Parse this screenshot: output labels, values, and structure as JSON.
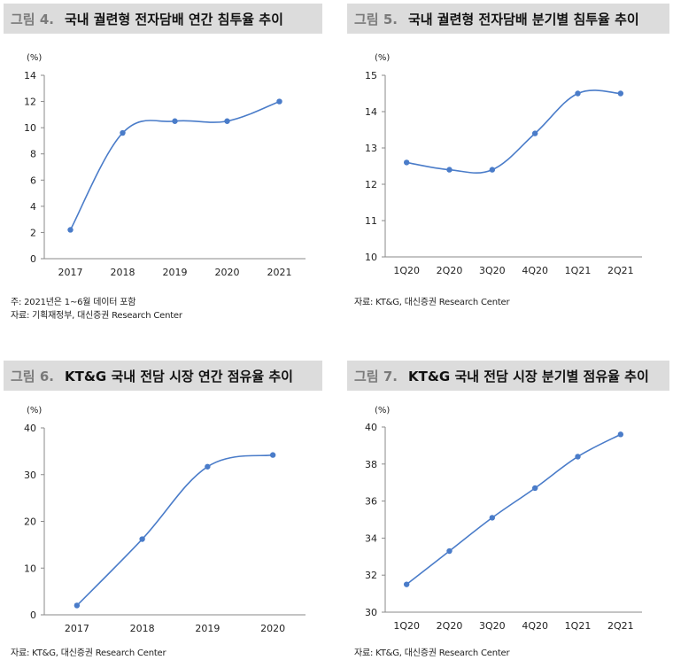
{
  "charts": [
    {
      "fig_label": "그림 4.",
      "title": "국내 궐련형 전자담배 연간 침투율 추이",
      "notes": [
        "주: 2021년은 1~6월 데이터 포함",
        "자료: 기획재정부, 대신증권 Research Center"
      ]
    },
    {
      "fig_label": "그림 5.",
      "title": "국내 궐련형 전자담배 분기별 침투율 추이",
      "notes": [
        "자료: KT&G, 대신증권 Research Center"
      ]
    },
    {
      "fig_label": "그림 6.",
      "title": "KT&G 국내 전담 시장 연간 점유율 추이",
      "notes": [
        "자료: KT&G, 대신증권 Research Center"
      ]
    },
    {
      "fig_label": "그림 7.",
      "title": "KT&G 국내 전담 시장 분기별 점유율 추이",
      "notes": [
        "자료: KT&G, 대신증권 Research Center"
      ]
    }
  ],
  "chart_data": [
    {
      "type": "line",
      "title": "국내 궐련형 전자담배 연간 침투율 추이",
      "unit_label": "(%)",
      "categories": [
        "2017",
        "2018",
        "2019",
        "2020",
        "2021"
      ],
      "series": [
        {
          "values": [
            2.2,
            9.6,
            10.5,
            10.5,
            12.0
          ]
        }
      ],
      "ylim": [
        0,
        14
      ],
      "yticks": [
        "0",
        "2",
        "4",
        "6",
        "8",
        "10",
        "12",
        "14"
      ],
      "grid": false,
      "color": "#4a7cc9"
    },
    {
      "type": "line",
      "title": "국내 궐련형 전자담배 분기별 침투율 추이",
      "unit_label": "(%)",
      "categories": [
        "1Q20",
        "2Q20",
        "3Q20",
        "4Q20",
        "1Q21",
        "2Q21"
      ],
      "series": [
        {
          "values": [
            12.6,
            12.4,
            12.4,
            13.4,
            14.5,
            14.5
          ]
        }
      ],
      "ylim": [
        10,
        15
      ],
      "yticks": [
        "10",
        "11",
        "12",
        "13",
        "14",
        "15"
      ],
      "grid": false,
      "color": "#4a7cc9"
    },
    {
      "type": "line",
      "title": "KT&G 국내 전담 시장 연간 점유율 추이",
      "unit_label": "(%)",
      "categories": [
        "2017",
        "2018",
        "2019",
        "2020"
      ],
      "series": [
        {
          "values": [
            2.0,
            16.2,
            31.7,
            34.2
          ]
        }
      ],
      "ylim": [
        0,
        40
      ],
      "yticks": [
        "0",
        "10",
        "20",
        "30",
        "40"
      ],
      "grid": false,
      "color": "#4a7cc9"
    },
    {
      "type": "line",
      "title": "KT&G 국내 전담 시장 분기별 점유율 추이",
      "unit_label": "(%)",
      "categories": [
        "1Q20",
        "2Q20",
        "3Q20",
        "4Q20",
        "1Q21",
        "2Q21"
      ],
      "series": [
        {
          "values": [
            31.5,
            33.3,
            35.1,
            36.7,
            38.4,
            39.6
          ]
        }
      ],
      "ylim": [
        30,
        40
      ],
      "yticks": [
        "30",
        "32",
        "34",
        "36",
        "38",
        "40"
      ],
      "grid": false,
      "color": "#4a7cc9"
    }
  ]
}
